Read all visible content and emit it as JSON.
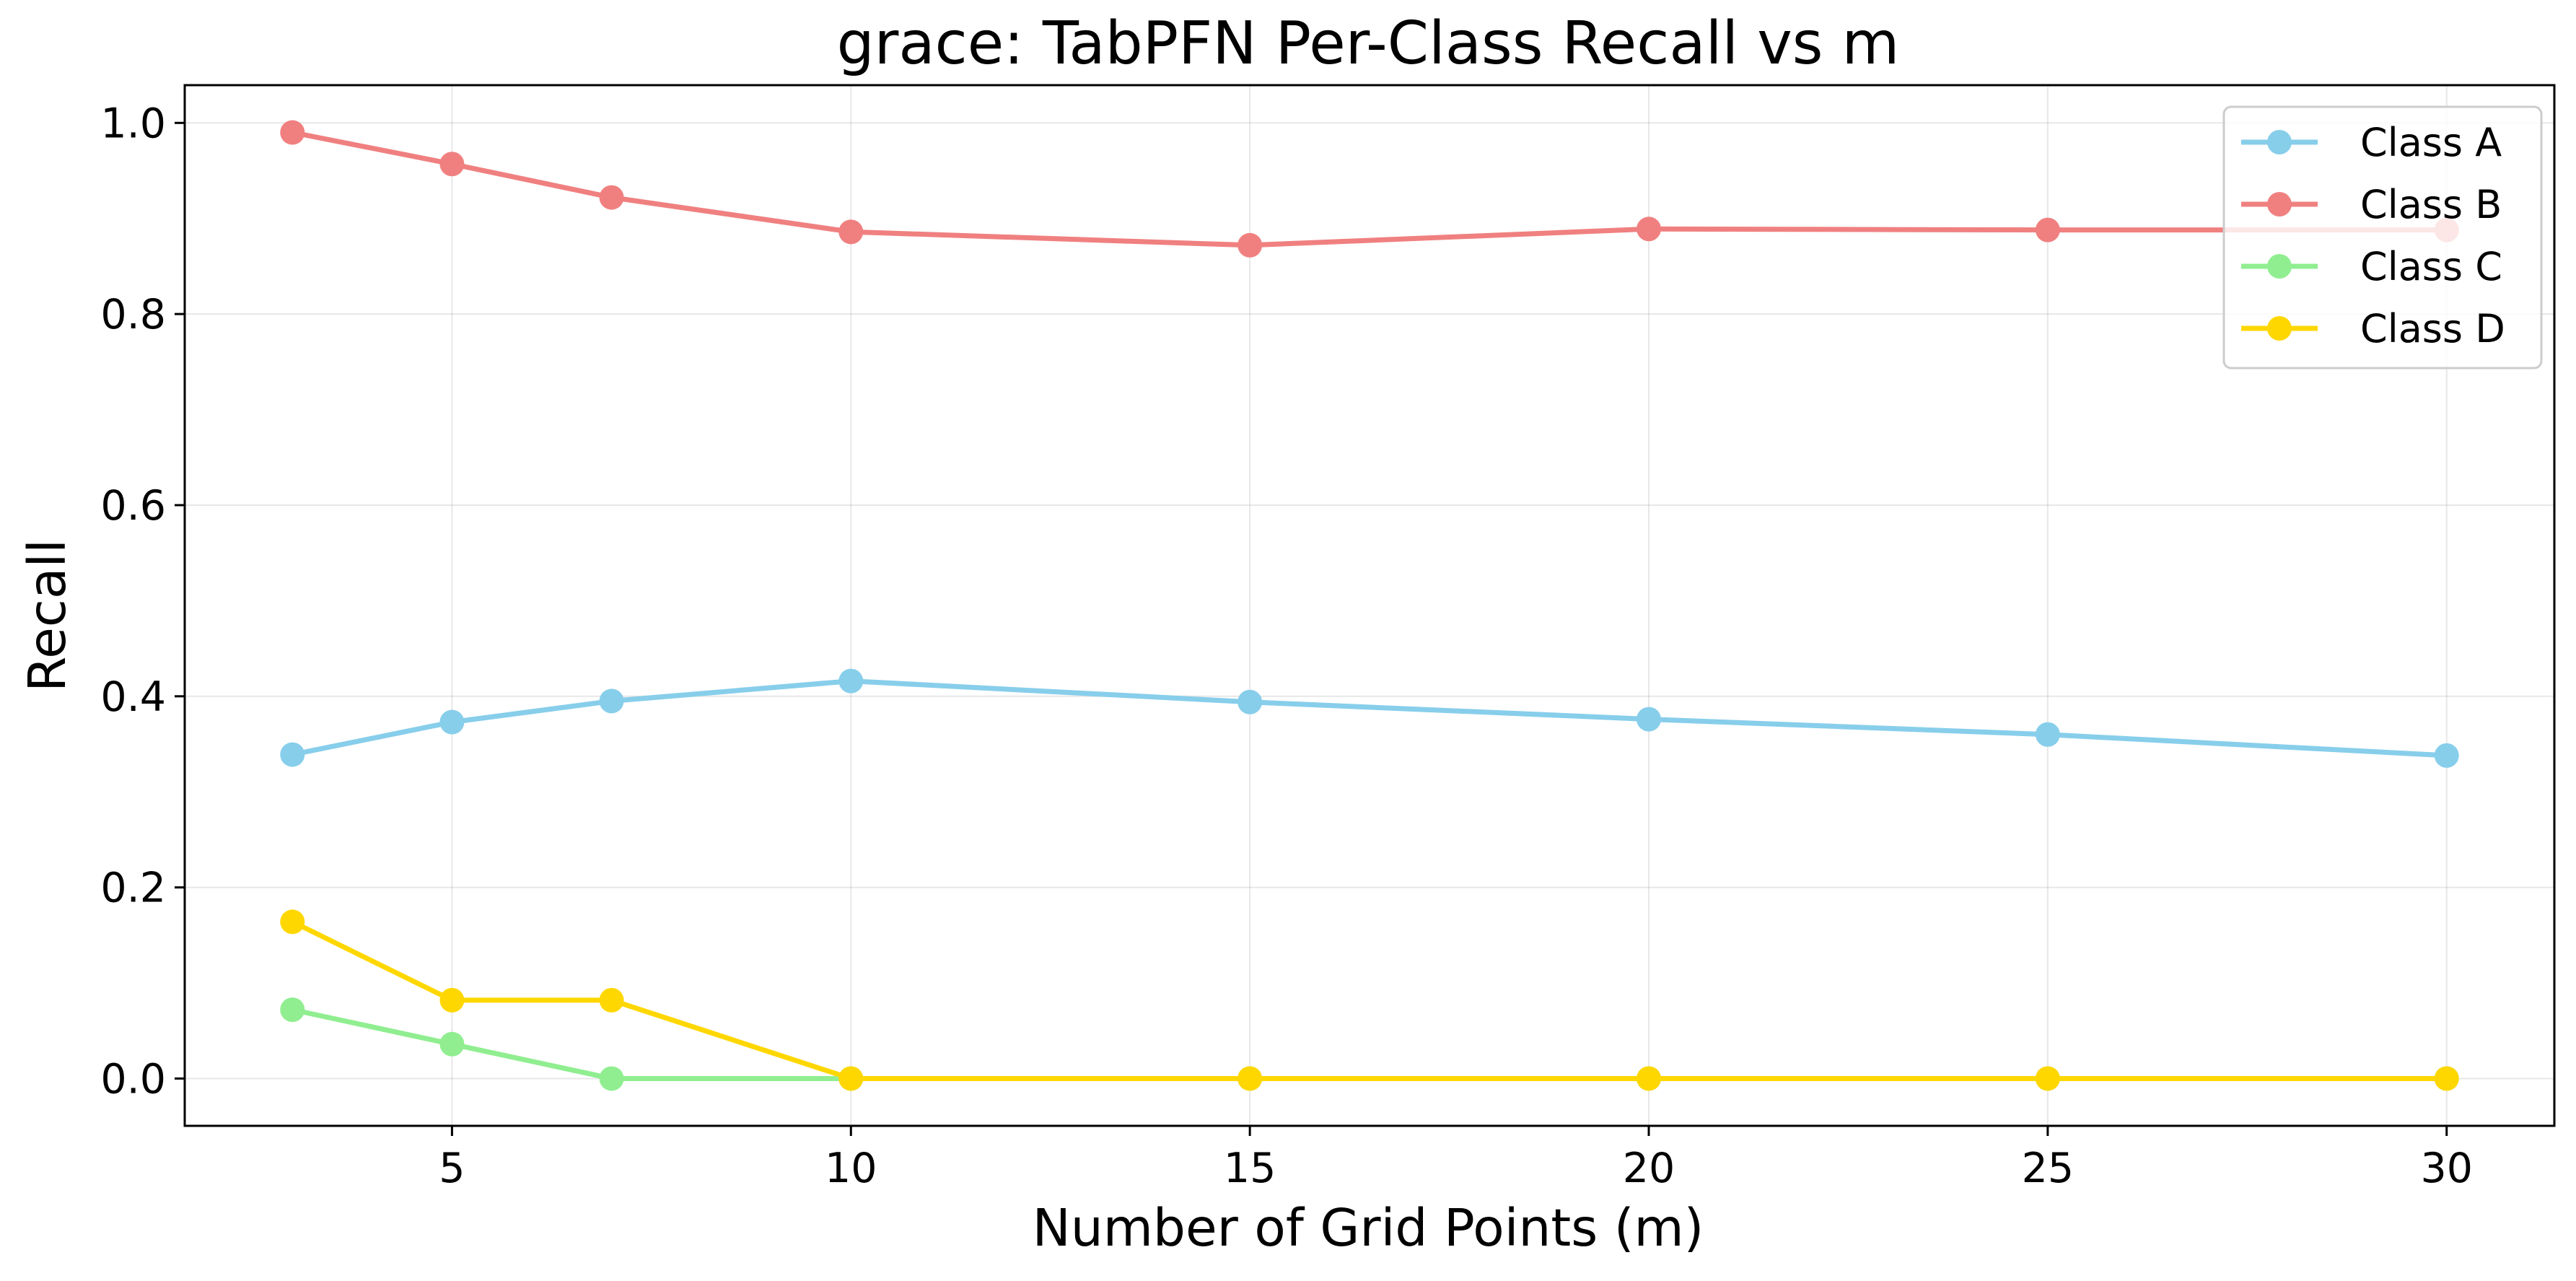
{
  "chart_data": {
    "type": "line",
    "title": "grace: TabPFN Per-Class Recall vs m",
    "xlabel": "Number of Grid Points (m)",
    "ylabel": "Recall",
    "x": [
      3,
      5,
      7,
      10,
      15,
      20,
      25,
      30
    ],
    "xlim": [
      1.65,
      31.35
    ],
    "ylim": [
      -0.0495,
      1.0395
    ],
    "xticks": [
      5,
      10,
      15,
      20,
      25,
      30
    ],
    "yticks": [
      0.0,
      0.2,
      0.4,
      0.6,
      0.8,
      1.0
    ],
    "xtick_labels": [
      "5",
      "10",
      "15",
      "20",
      "25",
      "30"
    ],
    "ytick_labels": [
      "0.0",
      "0.2",
      "0.4",
      "0.6",
      "0.8",
      "1.0"
    ],
    "grid": true,
    "legend_position": "top-right",
    "series": [
      {
        "name": "Class A",
        "color": "#87CEEB",
        "values": [
          0.339,
          0.373,
          0.395,
          0.416,
          0.394,
          0.376,
          0.36,
          0.338
        ]
      },
      {
        "name": "Class B",
        "color": "#F08080",
        "values": [
          0.99,
          0.957,
          0.922,
          0.886,
          0.872,
          0.889,
          0.888,
          0.888
        ]
      },
      {
        "name": "Class C",
        "color": "#90EE90",
        "values": [
          0.072,
          0.036,
          0.0,
          0.0,
          0.0,
          0.0,
          0.0,
          0.0
        ]
      },
      {
        "name": "Class D",
        "color": "#FFD700",
        "values": [
          0.164,
          0.082,
          0.082,
          0.0,
          0.0,
          0.0,
          0.0,
          0.0
        ]
      }
    ]
  }
}
